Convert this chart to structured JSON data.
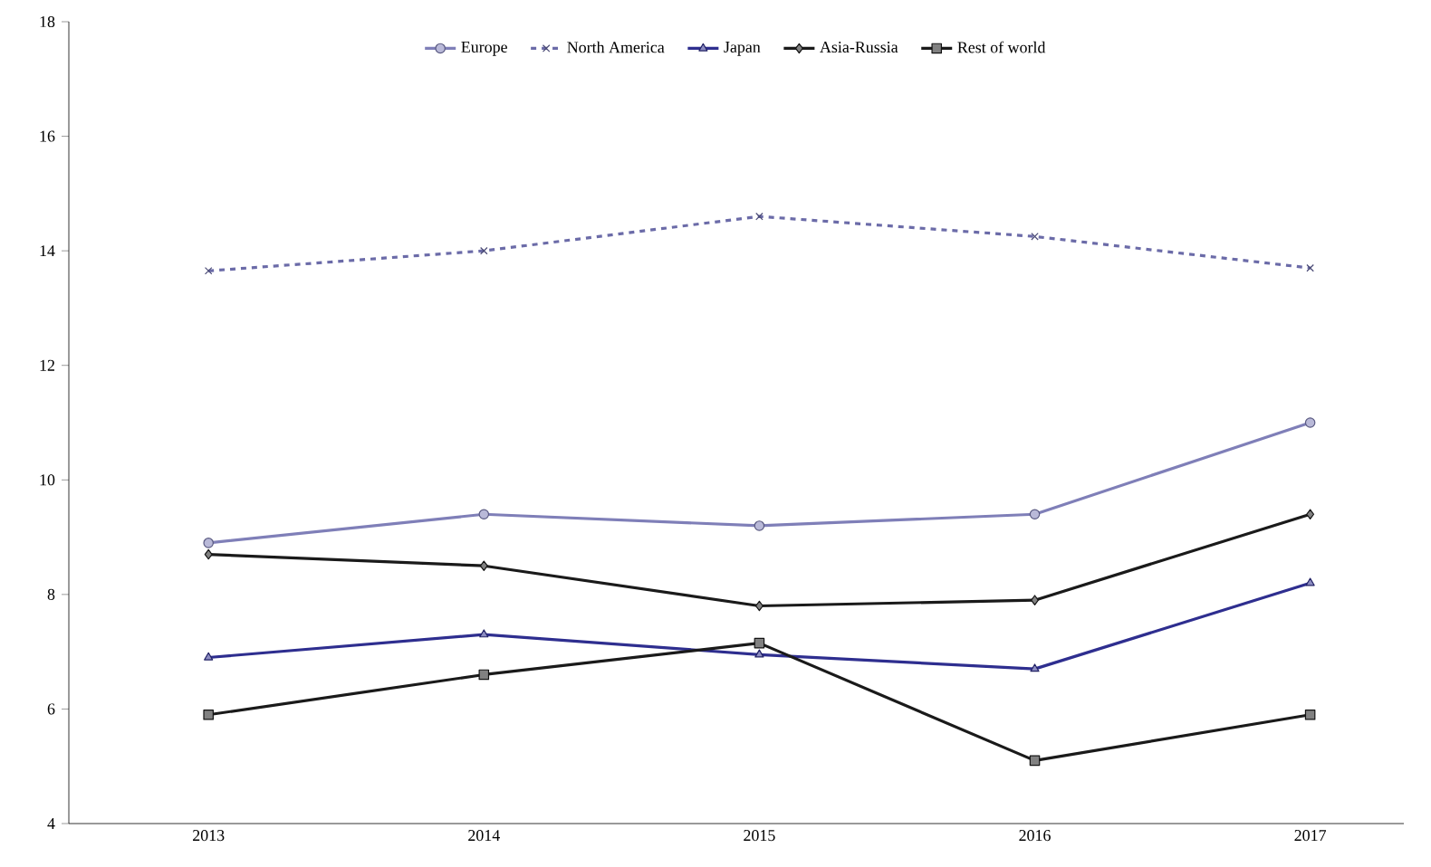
{
  "chart_data": {
    "type": "line",
    "categories": [
      "2013",
      "2014",
      "2015",
      "2016",
      "2017"
    ],
    "ylim": [
      4,
      18
    ],
    "yticks": [
      4,
      6,
      8,
      10,
      12,
      14,
      16,
      18
    ],
    "grid": false,
    "legend": "top",
    "series": [
      {
        "name": "Europe",
        "color": "#7f7fb8",
        "marker": "circle",
        "line_style": "solid",
        "values": [
          8.9,
          9.4,
          9.2,
          9.4,
          11.0
        ]
      },
      {
        "name": "North America",
        "color": "#6b6ba8",
        "marker": "cross",
        "line_style": "dashed",
        "values": [
          13.65,
          14.0,
          14.6,
          14.25,
          13.7
        ]
      },
      {
        "name": "Japan",
        "color": "#2e2e8f",
        "marker": "triangle",
        "line_style": "solid",
        "values": [
          6.9,
          7.3,
          6.95,
          6.7,
          8.2
        ]
      },
      {
        "name": "Asia-Russia",
        "color": "#1a1a1a",
        "marker": "diamond",
        "line_style": "solid",
        "values": [
          8.7,
          8.5,
          7.8,
          7.9,
          9.4
        ]
      },
      {
        "name": "Rest of world",
        "color": "#1a1a1a",
        "marker": "square",
        "line_style": "solid",
        "values": [
          5.9,
          6.6,
          7.15,
          5.1,
          5.9
        ]
      }
    ]
  }
}
